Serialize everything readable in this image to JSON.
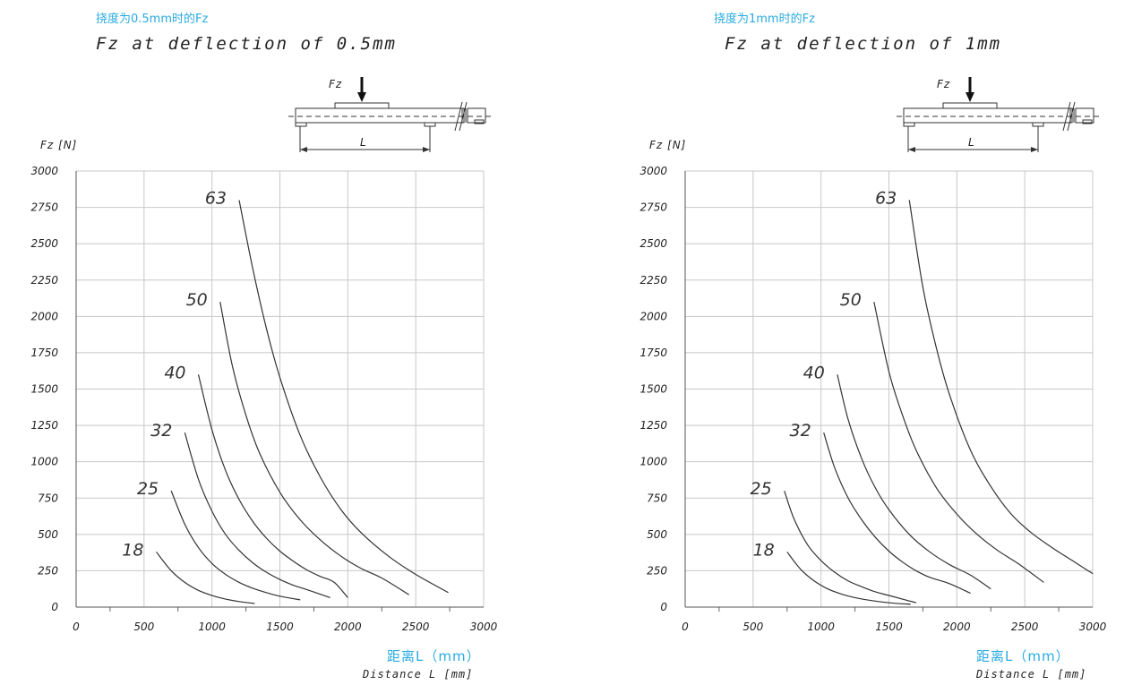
{
  "chart_data": [
    {
      "type": "line",
      "title_cn": "挠度为0.5mm时的Fz",
      "title": "Fz at deflection of 0.5mm",
      "ylabel": "Fz [N]",
      "xlabel_cn": "距离L（mm）",
      "xlabel": "Distance L [mm]",
      "xlim": [
        0,
        3000
      ],
      "ylim": [
        0,
        3000
      ],
      "x_ticks": [
        "0",
        "500",
        "1000",
        "1500",
        "2000",
        "2500",
        "3000"
      ],
      "y_ticks": [
        "0",
        "250",
        "500",
        "750",
        "1000",
        "1250",
        "1500",
        "1750",
        "2000",
        "2250",
        "2500",
        "2750",
        "3000"
      ],
      "grid": true,
      "diagram_labels": [
        "Fz",
        "L"
      ],
      "series": [
        {
          "name": "18",
          "x": [
            590,
            700,
            800,
            900,
            1000,
            1100,
            1200,
            1315
          ],
          "y": [
            380,
            250,
            170,
            115,
            80,
            55,
            38,
            25
          ]
        },
        {
          "name": "25",
          "x": [
            700,
            800,
            900,
            1000,
            1100,
            1200,
            1300,
            1400,
            1500,
            1650
          ],
          "y": [
            800,
            570,
            410,
            300,
            225,
            170,
            130,
            100,
            75,
            50
          ]
        },
        {
          "name": "32",
          "x": [
            800,
            900,
            1000,
            1100,
            1200,
            1300,
            1400,
            1500,
            1600,
            1700,
            1870
          ],
          "y": [
            1200,
            880,
            660,
            500,
            390,
            305,
            240,
            190,
            150,
            120,
            65
          ]
        },
        {
          "name": "40",
          "x": [
            900,
            1000,
            1100,
            1200,
            1300,
            1400,
            1500,
            1600,
            1700,
            1800,
            1900,
            2000
          ],
          "y": [
            1600,
            1220,
            940,
            740,
            590,
            475,
            385,
            315,
            255,
            210,
            170,
            65
          ]
        },
        {
          "name": "50",
          "x": [
            1060,
            1150,
            1250,
            1350,
            1500,
            1650,
            1800,
            1950,
            2100,
            2250,
            2450
          ],
          "y": [
            2100,
            1660,
            1320,
            1060,
            790,
            600,
            460,
            350,
            265,
            200,
            85
          ]
        },
        {
          "name": "63",
          "x": [
            1200,
            1300,
            1400,
            1500,
            1650,
            1800,
            1950,
            2100,
            2300,
            2500,
            2740
          ],
          "y": [
            2800,
            2330,
            1920,
            1580,
            1180,
            890,
            670,
            510,
            350,
            225,
            100
          ]
        }
      ]
    },
    {
      "type": "line",
      "title_cn": "挠度为1mm时的Fz",
      "title": "Fz at deflection of 1mm",
      "ylabel": "Fz [N]",
      "xlabel_cn": "距离L（mm）",
      "xlabel": "Distance L [mm]",
      "xlim": [
        0,
        3000
      ],
      "ylim": [
        0,
        3000
      ],
      "x_ticks": [
        "0",
        "500",
        "1000",
        "1500",
        "2000",
        "2500",
        "3000"
      ],
      "y_ticks": [
        "0",
        "250",
        "500",
        "750",
        "1000",
        "1250",
        "1500",
        "1750",
        "2000",
        "2250",
        "2500",
        "2750",
        "3000"
      ],
      "grid": true,
      "diagram_labels": [
        "Fz",
        "L"
      ],
      "series": [
        {
          "name": "18",
          "x": [
            750,
            850,
            950,
            1050,
            1150,
            1250,
            1350,
            1450,
            1560,
            1660
          ],
          "y": [
            380,
            260,
            180,
            125,
            90,
            65,
            48,
            35,
            25,
            20
          ]
        },
        {
          "name": "25",
          "x": [
            730,
            800,
            900,
            1000,
            1100,
            1200,
            1300,
            1400,
            1500,
            1700
          ],
          "y": [
            800,
            610,
            430,
            320,
            240,
            180,
            140,
            105,
            80,
            30
          ]
        },
        {
          "name": "32",
          "x": [
            1020,
            1100,
            1200,
            1300,
            1400,
            1500,
            1600,
            1700,
            1800,
            1950,
            2100
          ],
          "y": [
            1200,
            960,
            750,
            600,
            480,
            385,
            310,
            250,
            205,
            160,
            95
          ]
        },
        {
          "name": "40",
          "x": [
            1120,
            1200,
            1300,
            1400,
            1500,
            1650,
            1800,
            1950,
            2100,
            2250
          ],
          "y": [
            1600,
            1290,
            1020,
            820,
            670,
            500,
            380,
            290,
            220,
            125
          ]
        },
        {
          "name": "50",
          "x": [
            1390,
            1500,
            1600,
            1700,
            1850,
            2000,
            2150,
            2300,
            2450,
            2640
          ],
          "y": [
            2100,
            1620,
            1320,
            1080,
            820,
            640,
            500,
            390,
            300,
            170
          ]
        },
        {
          "name": "63",
          "x": [
            1650,
            1750,
            1850,
            1950,
            2100,
            2250,
            2400,
            2550,
            2700,
            2850,
            3000
          ],
          "y": [
            2800,
            2200,
            1780,
            1450,
            1080,
            830,
            640,
            510,
            410,
            320,
            230
          ]
        }
      ]
    }
  ]
}
